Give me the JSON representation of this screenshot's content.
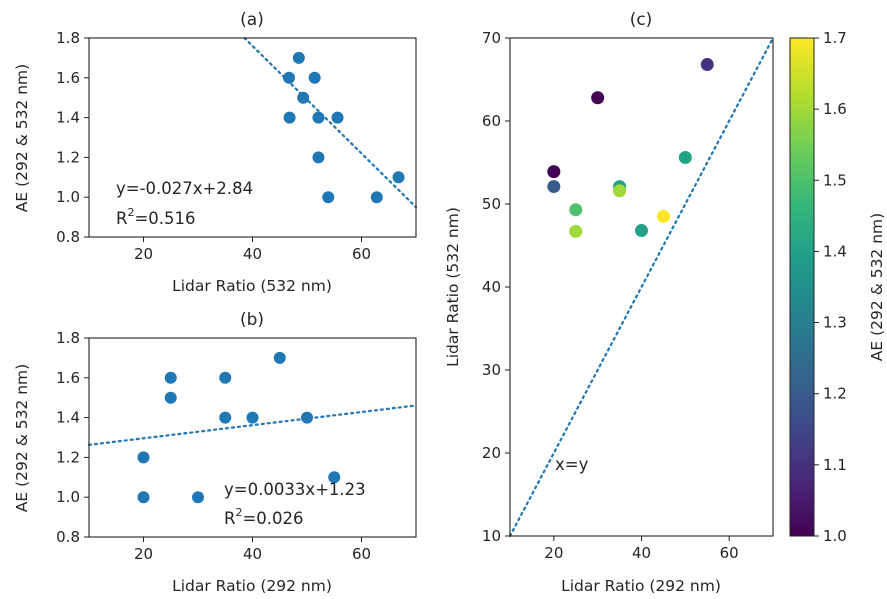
{
  "colors": {
    "marker": "#1f77b4",
    "fit_line": "#1f77b4",
    "colormap": [
      "#440154",
      "#482878",
      "#3e4989",
      "#31688e",
      "#26828e",
      "#1f9e89",
      "#35b779",
      "#6ece58",
      "#b5de2b",
      "#fde725"
    ]
  },
  "chart_data": [
    {
      "panel": "(a)",
      "type": "scatter",
      "title": "(a)",
      "xlabel": "Lidar Ratio (532 nm)",
      "ylabel": "AE (292 & 532 nm)",
      "xlim": [
        10,
        70
      ],
      "ylim": [
        0.8,
        1.8
      ],
      "xticks": [
        20,
        40,
        60
      ],
      "yticks": [
        "0.8",
        "1.0",
        "1.2",
        "1.4",
        "1.6",
        "1.8"
      ],
      "points": [
        {
          "x": 48.5,
          "y": 1.7
        },
        {
          "x": 46.7,
          "y": 1.6
        },
        {
          "x": 51.4,
          "y": 1.6
        },
        {
          "x": 49.3,
          "y": 1.5
        },
        {
          "x": 46.8,
          "y": 1.4
        },
        {
          "x": 52.1,
          "y": 1.4
        },
        {
          "x": 55.6,
          "y": 1.4
        },
        {
          "x": 52.1,
          "y": 1.2
        },
        {
          "x": 66.8,
          "y": 1.1
        },
        {
          "x": 53.9,
          "y": 1.0
        },
        {
          "x": 62.8,
          "y": 1.0
        }
      ],
      "fit": {
        "slope": -0.027,
        "intercept": 2.84
      },
      "annotations": [
        "y=-0.027x+2.84",
        "R",
        "2",
        "=0.516"
      ],
      "grid": false
    },
    {
      "panel": "(b)",
      "type": "scatter",
      "title": "(b)",
      "xlabel": "Lidar Ratio (292 nm)",
      "ylabel": "AE (292 & 532 nm)",
      "xlim": [
        10,
        70
      ],
      "ylim": [
        0.8,
        1.8
      ],
      "xticks": [
        20,
        40,
        60
      ],
      "yticks": [
        "0.8",
        "1.0",
        "1.2",
        "1.4",
        "1.6",
        "1.8"
      ],
      "points": [
        {
          "x": 45,
          "y": 1.7
        },
        {
          "x": 25,
          "y": 1.6
        },
        {
          "x": 35,
          "y": 1.6
        },
        {
          "x": 25,
          "y": 1.5
        },
        {
          "x": 35,
          "y": 1.4
        },
        {
          "x": 40,
          "y": 1.4
        },
        {
          "x": 50,
          "y": 1.4
        },
        {
          "x": 20,
          "y": 1.2
        },
        {
          "x": 55,
          "y": 1.1
        },
        {
          "x": 20,
          "y": 1.0
        },
        {
          "x": 30,
          "y": 1.0
        }
      ],
      "fit": {
        "slope": 0.0033,
        "intercept": 1.23
      },
      "annotations": [
        "y=0.0033x+1.23",
        "R",
        "2",
        "=0.026"
      ],
      "grid": false
    },
    {
      "panel": "(c)",
      "type": "scatter",
      "title": "(c)",
      "xlabel": "Lidar Ratio (292 nm)",
      "ylabel": "Lidar Ratio (532 nm)",
      "xlim": [
        10,
        70
      ],
      "ylim": [
        10,
        70
      ],
      "xticks": [
        20,
        40,
        60
      ],
      "yticks": [
        10,
        20,
        30,
        40,
        50,
        60,
        70
      ],
      "points": [
        {
          "x": 55,
          "y": 66.8,
          "c": 1.1
        },
        {
          "x": 30,
          "y": 62.8,
          "c": 1.0
        },
        {
          "x": 20,
          "y": 53.9,
          "c": 1.0
        },
        {
          "x": 20,
          "y": 52.1,
          "c": 1.2
        },
        {
          "x": 50,
          "y": 55.6,
          "c": 1.4
        },
        {
          "x": 35,
          "y": 52.1,
          "c": 1.4
        },
        {
          "x": 35,
          "y": 51.6,
          "c": 1.6
        },
        {
          "x": 25,
          "y": 49.3,
          "c": 1.5
        },
        {
          "x": 45,
          "y": 48.5,
          "c": 1.7
        },
        {
          "x": 25,
          "y": 46.7,
          "c": 1.6
        },
        {
          "x": 40,
          "y": 46.8,
          "c": 1.4
        }
      ],
      "reference_line": "x=y",
      "annotations": [
        "x=y"
      ],
      "colorbar": {
        "label": "AE (292 & 532 nm)",
        "range": [
          1.0,
          1.7
        ],
        "ticks": [
          "1.0",
          "1.1",
          "1.2",
          "1.3",
          "1.4",
          "1.5",
          "1.6",
          "1.7"
        ]
      },
      "grid": false
    }
  ]
}
